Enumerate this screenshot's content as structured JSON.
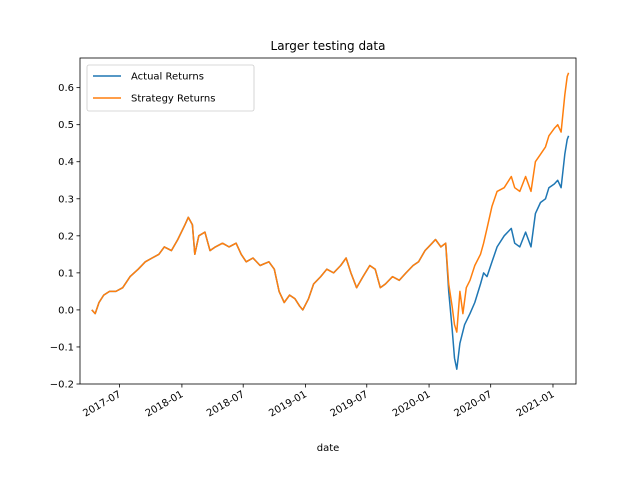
{
  "chart_data": {
    "type": "line",
    "title": "Larger testing data",
    "xlabel": "date",
    "ylabel": "",
    "xlim": [
      "2017-03-06",
      "2021-03-10"
    ],
    "ylim": [
      -0.2,
      0.68
    ],
    "x_ticks": [
      "2017-07",
      "2018-01",
      "2018-07",
      "2019-01",
      "2019-07",
      "2020-01",
      "2020-07",
      "2021-01"
    ],
    "y_ticks": [
      "−0.2",
      "−0.1",
      "0.0",
      "0.1",
      "0.2",
      "0.3",
      "0.4",
      "0.5",
      "0.6"
    ],
    "legend_position": "upper-left",
    "grid": false,
    "series": [
      {
        "name": "Actual Returns",
        "color": "#1f77b4",
        "points": [
          [
            "2017-04-10",
            0.0
          ],
          [
            "2017-04-20",
            -0.01
          ],
          [
            "2017-05-01",
            0.02
          ],
          [
            "2017-05-15",
            0.04
          ],
          [
            "2017-06-01",
            0.05
          ],
          [
            "2017-06-20",
            0.05
          ],
          [
            "2017-07-10",
            0.06
          ],
          [
            "2017-08-01",
            0.09
          ],
          [
            "2017-08-25",
            0.11
          ],
          [
            "2017-09-15",
            0.13
          ],
          [
            "2017-10-05",
            0.14
          ],
          [
            "2017-10-25",
            0.15
          ],
          [
            "2017-11-10",
            0.17
          ],
          [
            "2017-12-01",
            0.16
          ],
          [
            "2017-12-20",
            0.19
          ],
          [
            "2018-01-10",
            0.23
          ],
          [
            "2018-01-20",
            0.25
          ],
          [
            "2018-02-01",
            0.23
          ],
          [
            "2018-02-08",
            0.15
          ],
          [
            "2018-02-20",
            0.2
          ],
          [
            "2018-03-10",
            0.21
          ],
          [
            "2018-03-25",
            0.16
          ],
          [
            "2018-04-10",
            0.17
          ],
          [
            "2018-05-01",
            0.18
          ],
          [
            "2018-05-20",
            0.17
          ],
          [
            "2018-06-10",
            0.18
          ],
          [
            "2018-06-25",
            0.15
          ],
          [
            "2018-07-10",
            0.13
          ],
          [
            "2018-07-30",
            0.14
          ],
          [
            "2018-08-20",
            0.12
          ],
          [
            "2018-09-15",
            0.13
          ],
          [
            "2018-10-01",
            0.11
          ],
          [
            "2018-10-15",
            0.05
          ],
          [
            "2018-10-30",
            0.02
          ],
          [
            "2018-11-15",
            0.04
          ],
          [
            "2018-12-01",
            0.03
          ],
          [
            "2018-12-15",
            0.01
          ],
          [
            "2018-12-24",
            0.0
          ],
          [
            "2019-01-10",
            0.03
          ],
          [
            "2019-01-25",
            0.07
          ],
          [
            "2019-02-15",
            0.09
          ],
          [
            "2019-03-05",
            0.11
          ],
          [
            "2019-03-25",
            0.1
          ],
          [
            "2019-04-15",
            0.12
          ],
          [
            "2019-05-01",
            0.14
          ],
          [
            "2019-05-15",
            0.1
          ],
          [
            "2019-06-01",
            0.06
          ],
          [
            "2019-06-20",
            0.09
          ],
          [
            "2019-07-10",
            0.12
          ],
          [
            "2019-07-26",
            0.11
          ],
          [
            "2019-08-10",
            0.06
          ],
          [
            "2019-08-25",
            0.07
          ],
          [
            "2019-09-15",
            0.09
          ],
          [
            "2019-10-05",
            0.08
          ],
          [
            "2019-10-25",
            0.1
          ],
          [
            "2019-11-15",
            0.12
          ],
          [
            "2019-12-01",
            0.13
          ],
          [
            "2019-12-20",
            0.16
          ],
          [
            "2020-01-10",
            0.18
          ],
          [
            "2020-01-20",
            0.19
          ],
          [
            "2020-02-05",
            0.17
          ],
          [
            "2020-02-19",
            0.18
          ],
          [
            "2020-02-28",
            0.05
          ],
          [
            "2020-03-09",
            -0.05
          ],
          [
            "2020-03-16",
            -0.13
          ],
          [
            "2020-03-23",
            -0.16
          ],
          [
            "2020-04-01",
            -0.09
          ],
          [
            "2020-04-15",
            -0.04
          ],
          [
            "2020-05-01",
            -0.01
          ],
          [
            "2020-05-15",
            0.02
          ],
          [
            "2020-06-01",
            0.07
          ],
          [
            "2020-06-10",
            0.1
          ],
          [
            "2020-06-20",
            0.09
          ],
          [
            "2020-07-05",
            0.13
          ],
          [
            "2020-07-20",
            0.17
          ],
          [
            "2020-08-10",
            0.2
          ],
          [
            "2020-08-31",
            0.22
          ],
          [
            "2020-09-10",
            0.18
          ],
          [
            "2020-09-25",
            0.17
          ],
          [
            "2020-10-12",
            0.21
          ],
          [
            "2020-10-28",
            0.17
          ],
          [
            "2020-11-10",
            0.26
          ],
          [
            "2020-11-25",
            0.29
          ],
          [
            "2020-12-10",
            0.3
          ],
          [
            "2020-12-20",
            0.33
          ],
          [
            "2021-01-05",
            0.34
          ],
          [
            "2021-01-15",
            0.35
          ],
          [
            "2021-01-25",
            0.33
          ],
          [
            "2021-02-05",
            0.42
          ],
          [
            "2021-02-12",
            0.46
          ],
          [
            "2021-02-16",
            0.47
          ]
        ]
      },
      {
        "name": "Strategy Returns",
        "color": "#ff7f0e",
        "points": [
          [
            "2017-04-10",
            0.0
          ],
          [
            "2017-04-20",
            -0.01
          ],
          [
            "2017-05-01",
            0.02
          ],
          [
            "2017-05-15",
            0.04
          ],
          [
            "2017-06-01",
            0.05
          ],
          [
            "2017-06-20",
            0.05
          ],
          [
            "2017-07-10",
            0.06
          ],
          [
            "2017-08-01",
            0.09
          ],
          [
            "2017-08-25",
            0.11
          ],
          [
            "2017-09-15",
            0.13
          ],
          [
            "2017-10-05",
            0.14
          ],
          [
            "2017-10-25",
            0.15
          ],
          [
            "2017-11-10",
            0.17
          ],
          [
            "2017-12-01",
            0.16
          ],
          [
            "2017-12-20",
            0.19
          ],
          [
            "2018-01-10",
            0.23
          ],
          [
            "2018-01-20",
            0.25
          ],
          [
            "2018-02-01",
            0.23
          ],
          [
            "2018-02-08",
            0.15
          ],
          [
            "2018-02-20",
            0.2
          ],
          [
            "2018-03-10",
            0.21
          ],
          [
            "2018-03-25",
            0.16
          ],
          [
            "2018-04-10",
            0.17
          ],
          [
            "2018-05-01",
            0.18
          ],
          [
            "2018-05-20",
            0.17
          ],
          [
            "2018-06-10",
            0.18
          ],
          [
            "2018-06-25",
            0.15
          ],
          [
            "2018-07-10",
            0.13
          ],
          [
            "2018-07-30",
            0.14
          ],
          [
            "2018-08-20",
            0.12
          ],
          [
            "2018-09-15",
            0.13
          ],
          [
            "2018-10-01",
            0.11
          ],
          [
            "2018-10-15",
            0.05
          ],
          [
            "2018-10-30",
            0.02
          ],
          [
            "2018-11-15",
            0.04
          ],
          [
            "2018-12-01",
            0.03
          ],
          [
            "2018-12-15",
            0.01
          ],
          [
            "2018-12-24",
            0.0
          ],
          [
            "2019-01-10",
            0.03
          ],
          [
            "2019-01-25",
            0.07
          ],
          [
            "2019-02-15",
            0.09
          ],
          [
            "2019-03-05",
            0.11
          ],
          [
            "2019-03-25",
            0.1
          ],
          [
            "2019-04-15",
            0.12
          ],
          [
            "2019-05-01",
            0.14
          ],
          [
            "2019-05-15",
            0.1
          ],
          [
            "2019-06-01",
            0.06
          ],
          [
            "2019-06-20",
            0.09
          ],
          [
            "2019-07-10",
            0.12
          ],
          [
            "2019-07-26",
            0.11
          ],
          [
            "2019-08-10",
            0.06
          ],
          [
            "2019-08-25",
            0.07
          ],
          [
            "2019-09-15",
            0.09
          ],
          [
            "2019-10-05",
            0.08
          ],
          [
            "2019-10-25",
            0.1
          ],
          [
            "2019-11-15",
            0.12
          ],
          [
            "2019-12-01",
            0.13
          ],
          [
            "2019-12-20",
            0.16
          ],
          [
            "2020-01-10",
            0.18
          ],
          [
            "2020-01-20",
            0.19
          ],
          [
            "2020-02-05",
            0.17
          ],
          [
            "2020-02-19",
            0.18
          ],
          [
            "2020-02-28",
            0.07
          ],
          [
            "2020-03-09",
            0.01
          ],
          [
            "2020-03-16",
            -0.04
          ],
          [
            "2020-03-23",
            -0.06
          ],
          [
            "2020-04-01",
            0.05
          ],
          [
            "2020-04-10",
            -0.01
          ],
          [
            "2020-04-20",
            0.06
          ],
          [
            "2020-05-01",
            0.08
          ],
          [
            "2020-05-15",
            0.12
          ],
          [
            "2020-06-01",
            0.15
          ],
          [
            "2020-06-10",
            0.18
          ],
          [
            "2020-06-20",
            0.22
          ],
          [
            "2020-07-05",
            0.28
          ],
          [
            "2020-07-20",
            0.32
          ],
          [
            "2020-08-10",
            0.33
          ],
          [
            "2020-08-31",
            0.36
          ],
          [
            "2020-09-10",
            0.33
          ],
          [
            "2020-09-25",
            0.32
          ],
          [
            "2020-10-12",
            0.36
          ],
          [
            "2020-10-28",
            0.32
          ],
          [
            "2020-11-10",
            0.4
          ],
          [
            "2020-11-25",
            0.42
          ],
          [
            "2020-12-10",
            0.44
          ],
          [
            "2020-12-20",
            0.47
          ],
          [
            "2021-01-05",
            0.49
          ],
          [
            "2021-01-15",
            0.5
          ],
          [
            "2021-01-25",
            0.48
          ],
          [
            "2021-02-05",
            0.58
          ],
          [
            "2021-02-12",
            0.63
          ],
          [
            "2021-02-16",
            0.64
          ]
        ]
      }
    ]
  }
}
